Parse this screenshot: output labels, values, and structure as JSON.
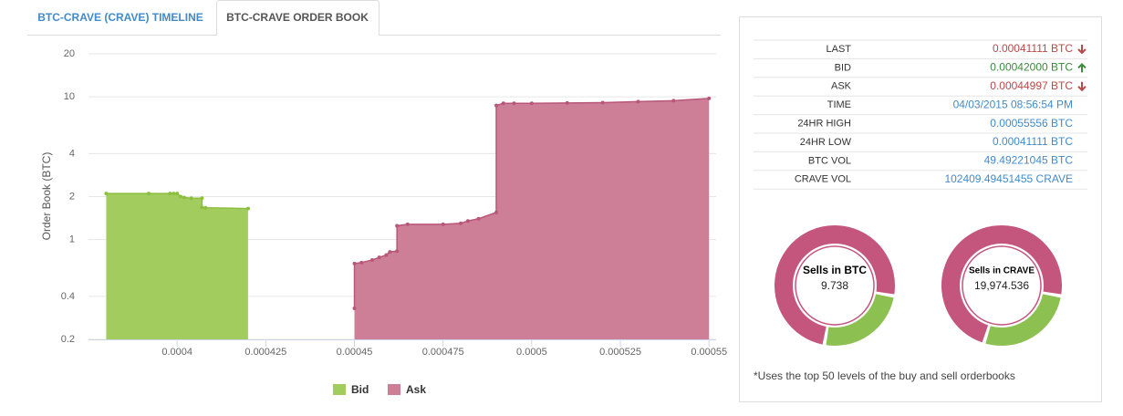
{
  "tabs": [
    "BTC-CRAVE (CRAVE) TIMELINE",
    "BTC-CRAVE ORDER BOOK"
  ],
  "chart_data": {
    "type": "area",
    "y_label": "Order Book (BTC)",
    "log_y": true,
    "grid": true,
    "xlim": [
      0.000375,
      0.000552
    ],
    "xticks": [
      0.0004,
      0.000425,
      0.00045,
      0.000475,
      0.0005,
      0.000525,
      0.00055
    ],
    "ylim": [
      0.2,
      20
    ],
    "yticks": [
      0.2,
      0.4,
      1,
      2,
      4,
      10,
      20
    ],
    "series": [
      {
        "name": "Bid",
        "color": "#a3cc5e",
        "line": "#8cbf3f",
        "x": [
          0.00038,
          0.000392,
          0.000398,
          0.000399,
          0.0004,
          0.000401,
          0.000402,
          0.000404,
          0.000407,
          0.000407,
          0.000408,
          0.00042
        ],
        "values": [
          2.1,
          2.1,
          2.1,
          2.1,
          2.1,
          2.0,
          1.97,
          1.95,
          1.95,
          1.68,
          1.67,
          1.65
        ]
      },
      {
        "name": "Ask",
        "color": "#cd7f98",
        "line": "#b8577a",
        "x": [
          0.00045,
          0.00045,
          0.000452,
          0.000455,
          0.000457,
          0.000459,
          0.00046,
          0.000462,
          0.000462,
          0.000465,
          0.000475,
          0.00048,
          0.000482,
          0.000485,
          0.00049,
          0.00049,
          0.000492,
          0.000495,
          0.0005,
          0.00051,
          0.00052,
          0.00053,
          0.00054,
          0.00055
        ],
        "values": [
          0.33,
          0.68,
          0.69,
          0.72,
          0.75,
          0.78,
          0.82,
          0.83,
          1.25,
          1.28,
          1.28,
          1.3,
          1.35,
          1.4,
          1.55,
          8.7,
          9.0,
          9.0,
          9.0,
          9.05,
          9.1,
          9.25,
          9.4,
          9.74
        ]
      }
    ]
  },
  "stats": {
    "rows": [
      {
        "label": "LAST",
        "value": "0.00041111 BTC",
        "color": "#b94a48",
        "arrow": "down"
      },
      {
        "label": "BID",
        "value": "0.00042000 BTC",
        "color": "#3c8c3c",
        "arrow": "up"
      },
      {
        "label": "ASK",
        "value": "0.00044997 BTC",
        "color": "#b94a48",
        "arrow": "down"
      },
      {
        "label": "TIME",
        "value": "04/03/2015 08:56:54 PM",
        "color": "#428bca"
      },
      {
        "label": "24HR HIGH",
        "value": "0.00055556 BTC",
        "color": "#428bca"
      },
      {
        "label": "24HR LOW",
        "value": "0.00041111 BTC",
        "color": "#428bca"
      },
      {
        "label": "BTC VOL",
        "value": "49.49221045 BTC",
        "color": "#428bca"
      },
      {
        "label": "CRAVE VOL",
        "value": "102409.49451455 CRAVE",
        "color": "#428bca"
      }
    ]
  },
  "donuts": [
    {
      "title": "Sells in BTC",
      "value": "9.738",
      "values": [
        25,
        75
      ],
      "colors": [
        "#8cc152",
        "#c4567e"
      ]
    },
    {
      "title": "Sells in CRAVE",
      "value": "19,974.536",
      "values": [
        27,
        73
      ],
      "colors": [
        "#8cc152",
        "#c4567e"
      ]
    }
  ],
  "footnote": "*Uses the top 50 levels of the buy and sell orderbooks"
}
